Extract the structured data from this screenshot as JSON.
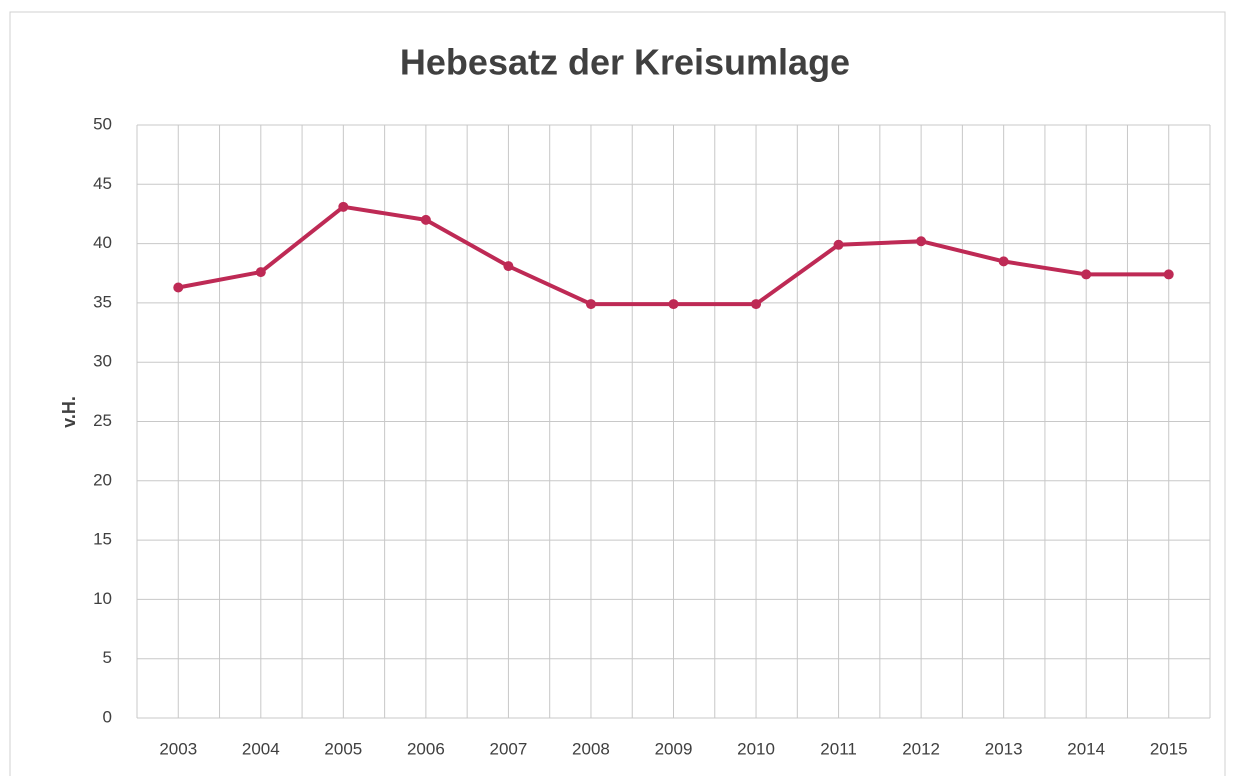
{
  "chart_data": {
    "type": "line",
    "title": "Hebesatz der Kreisumlage",
    "ylabel": "v.H.",
    "categories": [
      "2003",
      "2004",
      "2005",
      "2006",
      "2007",
      "2008",
      "2009",
      "2010",
      "2011",
      "2012",
      "2013",
      "2014",
      "2015"
    ],
    "values": [
      36.3,
      37.6,
      43.1,
      42.0,
      38.1,
      34.9,
      34.9,
      34.9,
      39.9,
      40.2,
      38.5,
      37.4,
      37.4
    ],
    "color": "#be2a55",
    "ylim": [
      0,
      50
    ],
    "yticks": [
      0,
      5,
      10,
      15,
      20,
      25,
      30,
      35,
      40,
      45,
      50
    ],
    "grid": true
  }
}
